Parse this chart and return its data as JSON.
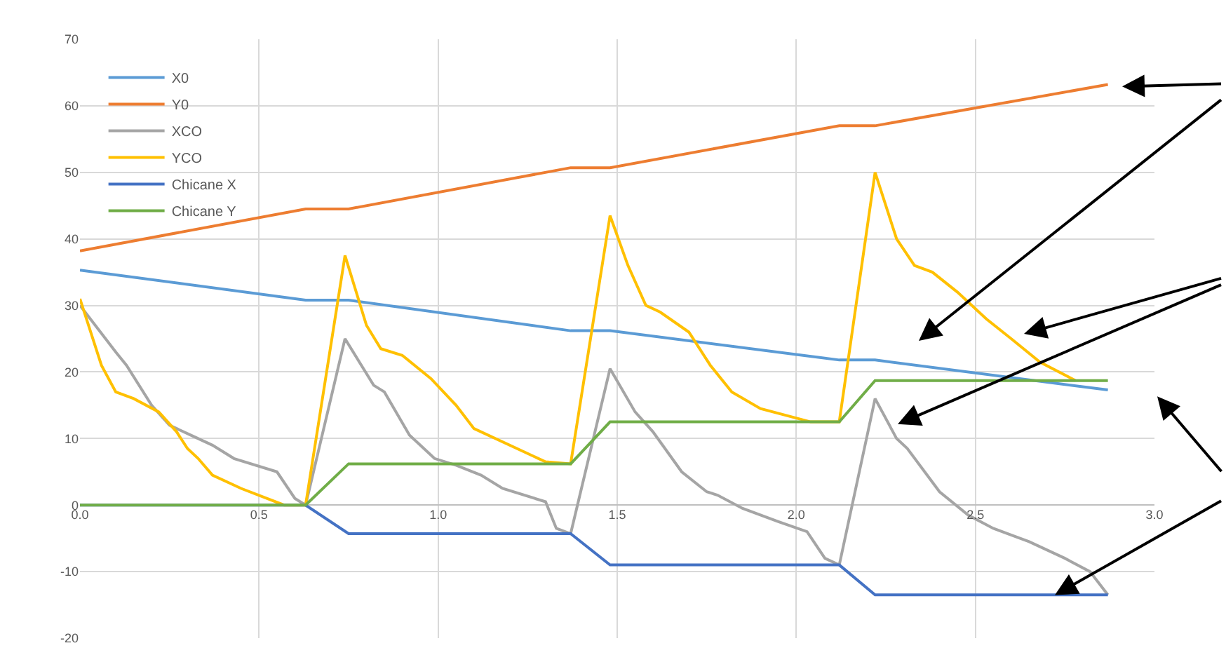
{
  "chart_data": {
    "type": "line",
    "legend": "top left",
    "grid": true,
    "marker": "none",
    "line_style": "solid",
    "xlim": [
      0,
      3.0
    ],
    "ylim": [
      -20,
      70
    ],
    "xticks": [
      {
        "value": 0,
        "label": "0.0"
      },
      {
        "value": 0.5,
        "label": "0.5"
      },
      {
        "value": 1.0,
        "label": "1.0"
      },
      {
        "value": 1.5,
        "label": "1.5"
      },
      {
        "value": 2.0,
        "label": "2.0"
      },
      {
        "value": 2.5,
        "label": "2.5"
      },
      {
        "value": 3.0,
        "label": "3.0"
      }
    ],
    "yticks": [
      -20,
      -10,
      0,
      10,
      20,
      30,
      40,
      50,
      60,
      70
    ],
    "series": [
      {
        "name": "X0",
        "color": "#5b9bd5",
        "x": [
          0,
          0.63,
          0.75,
          1.37,
          1.48,
          2.12,
          2.22,
          2.87
        ],
        "values": [
          35.3,
          30.8,
          30.8,
          26.2,
          26.2,
          21.8,
          21.8,
          17.3
        ]
      },
      {
        "name": "Y0",
        "color": "#ed7d31",
        "x": [
          0,
          0.63,
          0.75,
          1.37,
          1.48,
          2.12,
          2.22,
          2.87
        ],
        "values": [
          38.2,
          44.5,
          44.5,
          50.7,
          50.7,
          57,
          57,
          63.2
        ]
      },
      {
        "name": "XCO",
        "color": "#a5a5a5",
        "x": [
          0,
          0.1,
          0.13,
          0.2,
          0.25,
          0.31,
          0.37,
          0.43,
          0.55,
          0.6,
          0.63,
          0.74,
          0.82,
          0.85,
          0.92,
          0.99,
          1.05,
          1.12,
          1.18,
          1.3,
          1.33,
          1.37,
          1.48,
          1.55,
          1.6,
          1.68,
          1.75,
          1.78,
          1.85,
          1.95,
          2.03,
          2.08,
          2.12,
          2.22,
          2.28,
          2.31,
          2.4,
          2.48,
          2.55,
          2.65,
          2.75,
          2.82,
          2.87
        ],
        "values": [
          30,
          23,
          21,
          15,
          12,
          10.5,
          9,
          7,
          5,
          1,
          0,
          25,
          18,
          17,
          10.5,
          7,
          6,
          4.5,
          2.5,
          0.5,
          -3.5,
          -4.3,
          20.5,
          14,
          11,
          5,
          2,
          1.5,
          -0.5,
          -2.5,
          -4,
          -8,
          -9,
          16,
          10,
          8.5,
          2,
          -1.5,
          -3.5,
          -5.5,
          -8,
          -10,
          -13.5
        ]
      },
      {
        "name": "YCO",
        "color": "#ffc000",
        "x": [
          0,
          0.06,
          0.1,
          0.15,
          0.22,
          0.27,
          0.3,
          0.33,
          0.37,
          0.45,
          0.57,
          0.63,
          0.74,
          0.8,
          0.84,
          0.9,
          0.98,
          1.05,
          1.1,
          1.3,
          1.37,
          1.48,
          1.53,
          1.58,
          1.62,
          1.7,
          1.76,
          1.82,
          1.9,
          2.04,
          2.12,
          2.22,
          2.28,
          2.33,
          2.38,
          2.45,
          2.53,
          2.6,
          2.68,
          2.78
        ],
        "values": [
          31,
          21,
          17,
          16,
          14,
          11,
          8.5,
          7,
          4.5,
          2.5,
          0,
          0,
          37.5,
          27,
          23.5,
          22.5,
          19,
          15,
          11.5,
          6.5,
          6.2,
          43.5,
          36,
          30,
          29,
          26,
          21,
          17,
          14.5,
          12.5,
          12.5,
          50,
          40,
          36,
          35,
          32,
          28,
          25,
          21.5,
          18.7
        ]
      },
      {
        "name": "Chicane X",
        "color": "#4472c4",
        "x": [
          0,
          0.63,
          0.75,
          1.37,
          1.48,
          2.12,
          2.22,
          2.87
        ],
        "values": [
          0,
          0,
          -4.3,
          -4.3,
          -9,
          -9,
          -13.5,
          -13.5
        ]
      },
      {
        "name": "Chicane Y",
        "color": "#70ad47",
        "x": [
          0,
          0.63,
          0.75,
          1.37,
          1.48,
          2.12,
          2.22,
          2.87
        ],
        "values": [
          0,
          0,
          6.2,
          6.2,
          12.5,
          12.5,
          18.7,
          18.7
        ]
      }
    ]
  }
}
